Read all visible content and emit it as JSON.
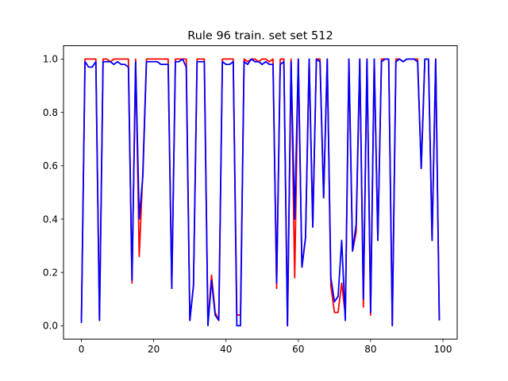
{
  "chart_data": {
    "type": "line",
    "title": "Rule 96 train. set set 512",
    "xlabel": "",
    "ylabel": "",
    "xlim": [
      -4.95,
      103.95
    ],
    "ylim": [
      -0.05,
      1.05
    ],
    "xticks": [
      0,
      20,
      40,
      60,
      80,
      100
    ],
    "yticks": [
      0.0,
      0.2,
      0.4,
      0.6,
      0.8,
      1.0
    ],
    "xtick_labels": [
      "0",
      "20",
      "40",
      "60",
      "80",
      "100"
    ],
    "ytick_labels": [
      "0.0",
      "0.2",
      "0.4",
      "0.6",
      "0.8",
      "1.0"
    ],
    "grid": false,
    "x": [
      0,
      1,
      2,
      3,
      4,
      5,
      6,
      7,
      8,
      9,
      10,
      11,
      12,
      13,
      14,
      15,
      16,
      17,
      18,
      19,
      20,
      21,
      22,
      23,
      24,
      25,
      26,
      27,
      28,
      29,
      30,
      31,
      32,
      33,
      34,
      35,
      36,
      37,
      38,
      39,
      40,
      41,
      42,
      43,
      44,
      45,
      46,
      47,
      48,
      49,
      50,
      51,
      52,
      53,
      54,
      55,
      56,
      57,
      58,
      59,
      60,
      61,
      62,
      63,
      64,
      65,
      66,
      67,
      68,
      69,
      70,
      71,
      72,
      73,
      74,
      75,
      76,
      77,
      78,
      79,
      80,
      81,
      82,
      83,
      84,
      85,
      86,
      87,
      88,
      89,
      90,
      91,
      92,
      93,
      94,
      95,
      96,
      97,
      98,
      99
    ],
    "series": [
      {
        "color": "#ff0000",
        "values": [
          0.02,
          1.0,
          1.0,
          1.0,
          1.0,
          0.02,
          1.0,
          1.0,
          0.99,
          1.0,
          1.0,
          1.0,
          1.0,
          1.0,
          0.16,
          1.0,
          0.26,
          0.58,
          1.0,
          1.0,
          1.0,
          1.0,
          1.0,
          1.0,
          1.0,
          0.14,
          1.0,
          1.0,
          1.0,
          1.0,
          0.02,
          0.15,
          1.0,
          1.0,
          1.0,
          0.01,
          0.19,
          0.05,
          0.02,
          1.0,
          1.0,
          1.0,
          1.0,
          0.04,
          0.04,
          1.0,
          0.99,
          1.0,
          1.0,
          0.99,
          1.0,
          1.0,
          0.99,
          1.0,
          0.14,
          1.0,
          1.0,
          0.0,
          1.0,
          0.18,
          1.0,
          0.22,
          0.33,
          1.0,
          0.37,
          1.0,
          1.0,
          0.48,
          1.0,
          0.15,
          0.05,
          0.05,
          0.16,
          0.04,
          1.0,
          0.28,
          0.35,
          1.0,
          0.07,
          1.0,
          0.04,
          1.0,
          0.32,
          1.0,
          1.0,
          1.0,
          0.0,
          1.0,
          1.0,
          0.99,
          1.0,
          1.0,
          1.0,
          1.0,
          0.59,
          1.0,
          1.0,
          0.32,
          1.0,
          0.02
        ]
      },
      {
        "color": "#0000ff",
        "values": [
          0.01,
          0.99,
          0.97,
          0.97,
          0.99,
          0.02,
          0.99,
          0.99,
          0.99,
          0.98,
          0.99,
          0.98,
          0.98,
          0.97,
          0.17,
          0.99,
          0.4,
          0.56,
          0.99,
          0.99,
          0.99,
          0.99,
          0.98,
          0.98,
          0.98,
          0.14,
          0.99,
          0.99,
          1.0,
          0.97,
          0.02,
          0.15,
          0.99,
          0.99,
          0.99,
          0.0,
          0.17,
          0.04,
          0.02,
          0.99,
          0.98,
          0.98,
          0.99,
          0.0,
          0.0,
          0.99,
          0.98,
          1.0,
          0.99,
          0.99,
          0.98,
          0.99,
          0.98,
          0.98,
          0.16,
          0.98,
          0.99,
          0.0,
          0.99,
          0.4,
          1.0,
          0.22,
          0.33,
          1.0,
          0.37,
          1.0,
          0.99,
          0.48,
          1.0,
          0.18,
          0.09,
          0.11,
          0.32,
          0.02,
          1.0,
          0.28,
          0.38,
          1.0,
          0.1,
          1.0,
          0.05,
          1.0,
          0.32,
          0.99,
          1.0,
          1.0,
          0.0,
          0.99,
          1.0,
          0.99,
          1.0,
          1.0,
          1.0,
          0.99,
          0.59,
          1.0,
          1.0,
          0.32,
          1.0,
          0.02
        ]
      }
    ]
  }
}
